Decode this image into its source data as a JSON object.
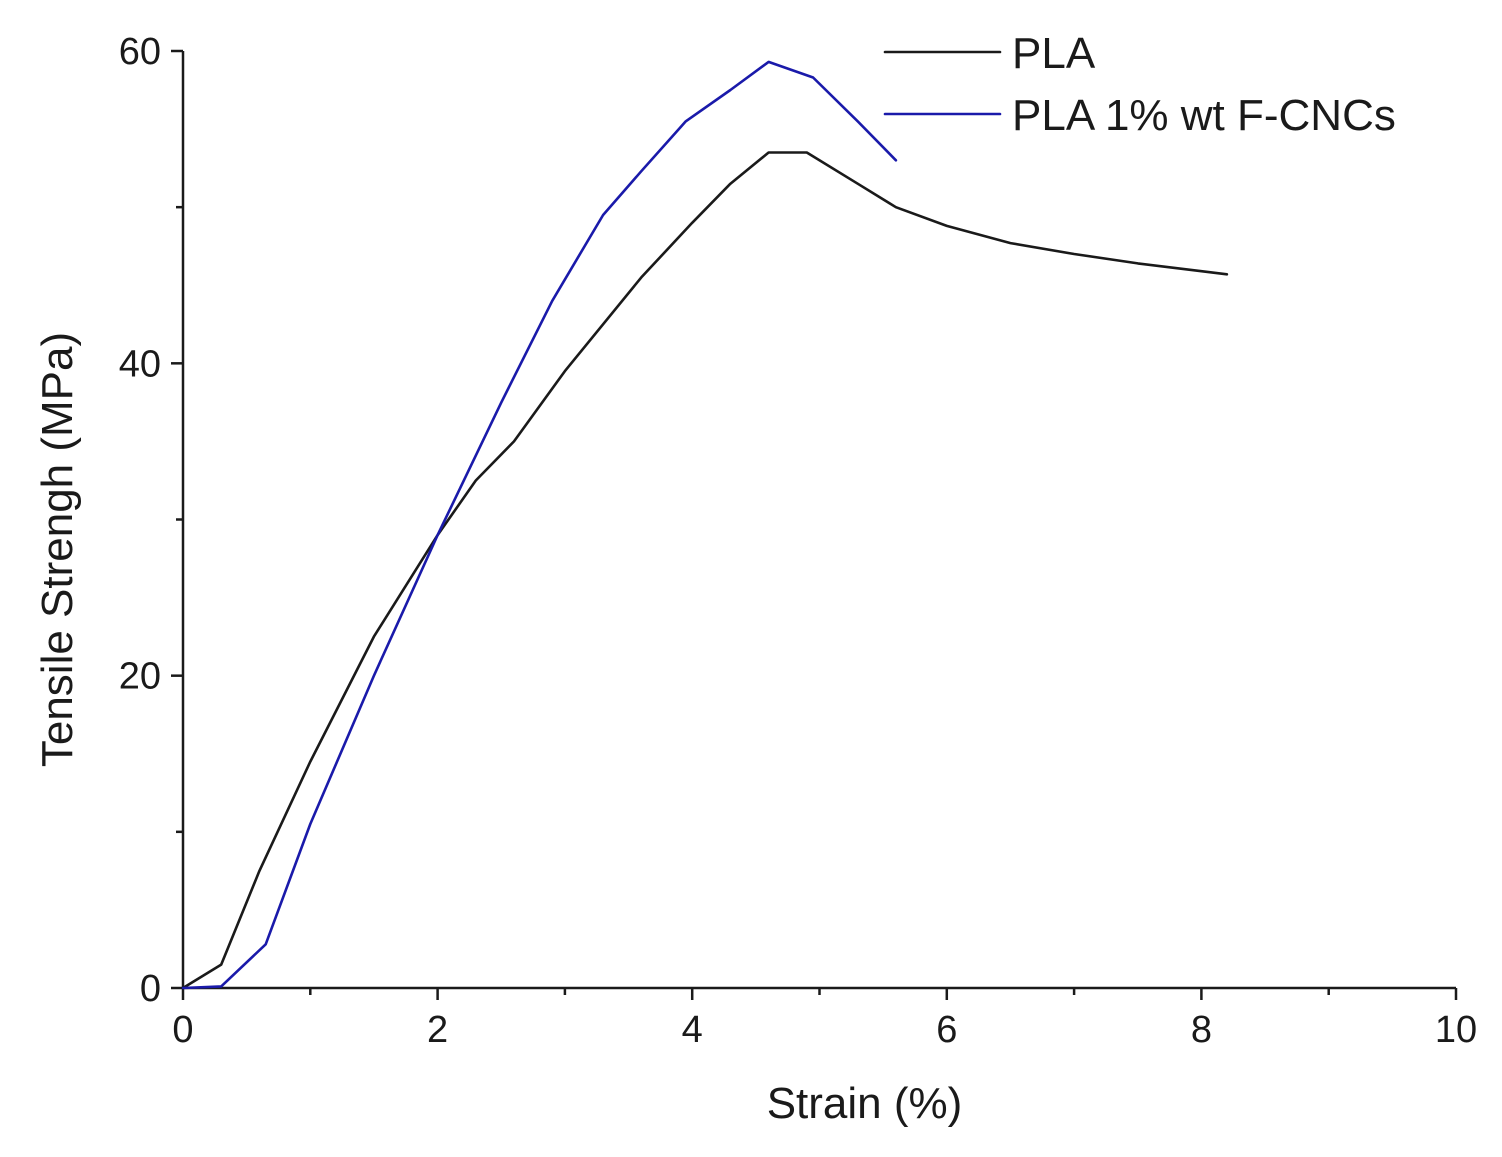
{
  "chart_data": {
    "type": "line",
    "title": "",
    "xlabel": "Strain (%)",
    "ylabel": "Tensile Strengh (MPa)",
    "xlim": [
      0,
      10
    ],
    "ylim": [
      0,
      60
    ],
    "x_major_ticks": [
      0,
      2,
      4,
      6,
      8,
      10
    ],
    "x_minor_ticks": [
      1,
      3,
      5,
      7,
      9
    ],
    "y_major_ticks": [
      0,
      20,
      40,
      60
    ],
    "y_minor_ticks": [
      10,
      30,
      50
    ],
    "grid": false,
    "legend_position": "top-right",
    "series": [
      {
        "name": "PLA",
        "color": "#1a1a1a",
        "x": [
          0,
          0.3,
          0.6,
          1.0,
          1.5,
          2.0,
          2.3,
          2.6,
          3.0,
          3.6,
          4.0,
          4.3,
          4.6,
          4.9,
          5.3,
          5.6,
          6.0,
          6.5,
          7.0,
          7.5,
          8.0,
          8.2
        ],
        "y": [
          0,
          1.5,
          7.5,
          14.5,
          22.5,
          29.0,
          32.5,
          35.0,
          39.5,
          45.5,
          49.0,
          51.5,
          53.5,
          53.5,
          51.5,
          50.0,
          48.8,
          47.7,
          47.0,
          46.4,
          45.9,
          45.7
        ]
      },
      {
        "name": "PLA 1% wt F-CNCs",
        "color": "#1a1aaa",
        "x": [
          0,
          0.3,
          0.65,
          1.0,
          1.5,
          2.0,
          2.5,
          2.9,
          3.3,
          3.6,
          3.95,
          4.3,
          4.6,
          4.95,
          5.3,
          5.6
        ],
        "y": [
          0,
          0.1,
          2.8,
          10.5,
          20.0,
          29.0,
          37.5,
          44.0,
          49.5,
          52.3,
          55.5,
          57.5,
          59.3,
          58.3,
          55.5,
          53.0
        ]
      }
    ]
  }
}
